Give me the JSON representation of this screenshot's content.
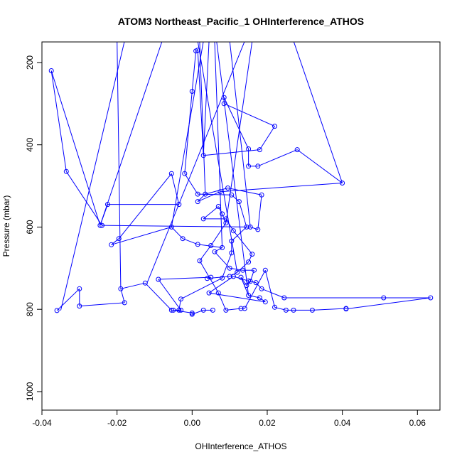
{
  "chart_data": {
    "type": "line",
    "title": "ATOM3 Northeast_Pacific_1 OHInterference_ATHOS",
    "xlabel": "OHInterference_ATHOS",
    "ylabel": "Pressure (mbar)",
    "xlim": [
      -0.04,
      0.066
    ],
    "ylim": [
      1045,
      150
    ],
    "y_reversed": true,
    "x_ticks": [
      -0.04,
      -0.02,
      0.0,
      0.02,
      0.04,
      0.06
    ],
    "x_tick_labels": [
      "-0.04",
      "-0.02",
      "0.00",
      "0.02",
      "0.04",
      "0.06"
    ],
    "y_ticks": [
      200,
      400,
      600,
      800,
      1000
    ],
    "y_tick_labels": [
      "200",
      "400",
      "600",
      "800",
      "1000"
    ],
    "grid": false,
    "series": [
      {
        "color": "#0000ff",
        "marker": "open-circle",
        "points": [
          [
            -0.036,
            803
          ],
          [
            -0.03,
            750
          ],
          [
            -0.03,
            792
          ],
          [
            -0.018,
            784
          ],
          [
            -0.019,
            750
          ],
          [
            -0.0125,
            736
          ],
          [
            -0.0055,
            802
          ],
          [
            -0.003,
            802
          ],
          [
            -0.009,
            727
          ],
          [
            0.005,
            722
          ],
          [
            0.004,
            725
          ],
          [
            0.01,
            720
          ],
          [
            0.012,
            710
          ],
          [
            0.015,
            685
          ],
          [
            0.016,
            666
          ],
          [
            0.011,
            609
          ],
          [
            0.009,
            580
          ],
          [
            0.003,
            580
          ],
          [
            0.007,
            550
          ],
          [
            0.008,
            568
          ],
          [
            0.009,
            590
          ],
          [
            0.005,
            645
          ],
          [
            0.002,
            682
          ],
          [
            0.007,
            760
          ],
          [
            0.009,
            802
          ],
          [
            0.013,
            798
          ],
          [
            0.014,
            798
          ],
          [
            0.0195,
            705
          ],
          [
            0.022,
            795
          ],
          [
            0.025,
            802
          ],
          [
            0.027,
            802
          ],
          [
            0.032,
            802
          ],
          [
            0.041,
            798
          ],
          [
            0.041,
            799
          ],
          [
            0.0635,
            772
          ],
          [
            0.051,
            772
          ],
          [
            0.0245,
            772
          ],
          [
            0.0185,
            750
          ],
          [
            0.017,
            735
          ],
          [
            0.015,
            731
          ],
          [
            0.011,
            720
          ],
          [
            0.0045,
            760
          ],
          [
            0.0195,
            782
          ],
          [
            0.018,
            772
          ],
          [
            0.015,
            766
          ],
          [
            0.013,
            722
          ],
          [
            0.0145,
            742
          ],
          [
            0.0155,
            732
          ],
          [
            0.0165,
            705
          ],
          [
            0.0135,
            705
          ],
          [
            0.01,
            700
          ],
          [
            0.006,
            660
          ],
          [
            0.008,
            650
          ],
          [
            0.0015,
            642
          ],
          [
            -0.0025,
            628
          ],
          [
            -0.0055,
            600
          ],
          [
            -0.0215,
            643
          ],
          [
            -0.0195,
            628
          ],
          [
            -0.0055,
            470
          ],
          [
            -0.0035,
            545
          ],
          [
            -0.0225,
            545
          ],
          [
            -0.0245,
            596
          ],
          [
            -0.0375,
            220
          ],
          [
            -0.0335,
            465
          ],
          [
            -0.024,
            596
          ],
          [
            0.0155,
            600
          ],
          [
            0.0175,
            606
          ],
          [
            0.0185,
            522
          ],
          [
            0.0095,
            505
          ],
          [
            0.0035,
            520
          ],
          [
            0.0015,
            538
          ],
          [
            0.0075,
            514
          ],
          [
            0.04,
            493
          ],
          [
            0.028,
            412
          ],
          [
            0.0175,
            452
          ],
          [
            0.015,
            452
          ],
          [
            0.015,
            410
          ],
          [
            0.0085,
            285
          ],
          [
            0.0085,
            300
          ],
          [
            0.022,
            355
          ],
          [
            0.018,
            412
          ],
          [
            0.003,
            426
          ],
          [
            0.0015,
            170
          ],
          [
            0.001,
            172
          ],
          [
            0.0,
            270
          ],
          [
            -0.002,
            470
          ],
          [
            0.0015,
            520
          ],
          [
            0.0105,
            522
          ],
          [
            0.0125,
            538
          ],
          [
            0.0145,
            600
          ],
          [
            0.0105,
            634
          ],
          [
            0.0105,
            663
          ],
          [
            0.008,
            724
          ],
          [
            -0.003,
            775
          ],
          [
            -0.0035,
            802
          ],
          [
            -0.005,
            802
          ],
          [
            0.0,
            809
          ],
          [
            0.0,
            812
          ],
          [
            0.003,
            802
          ],
          [
            0.0055,
            802
          ]
        ]
      }
    ],
    "offplot_segments": [
      [
        [
          -0.019,
          750
        ],
        [
          -0.02,
          148
        ]
      ],
      [
        [
          -0.035,
          803
        ],
        [
          -0.018,
          148
        ]
      ],
      [
        [
          0.009,
          590
        ],
        [
          0.016,
          148
        ]
      ],
      [
        [
          0.0035,
          520
        ],
        [
          0.002,
          148
        ]
      ],
      [
        [
          0.04,
          493
        ],
        [
          0.027,
          148
        ]
      ],
      [
        [
          -0.0055,
          600
        ],
        [
          0.003,
          148
        ]
      ],
      [
        [
          0.003,
          426
        ],
        [
          0.0045,
          148
        ]
      ],
      [
        [
          0.008,
          650
        ],
        [
          0.006,
          148
        ]
      ],
      [
        [
          0.0155,
          600
        ],
        [
          0.01,
          148
        ]
      ],
      [
        [
          0.012,
          710
        ],
        [
          0.0015,
          148
        ]
      ],
      [
        [
          0.015,
          766
        ],
        [
          0.0065,
          148
        ]
      ],
      [
        [
          -0.012,
          736
        ],
        [
          0.014,
          148
        ]
      ],
      [
        [
          -0.0245,
          596
        ],
        [
          -0.008,
          148
        ]
      ]
    ]
  }
}
